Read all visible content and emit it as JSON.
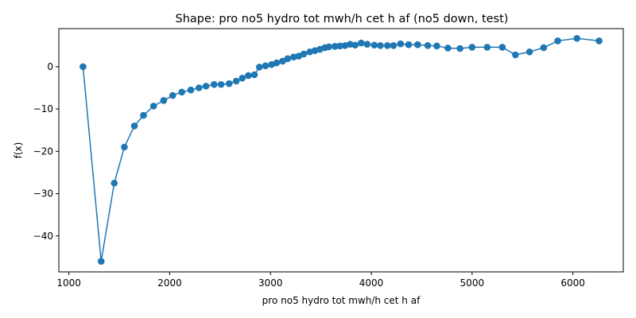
{
  "chart_data": {
    "type": "line",
    "title": "Shape: pro no5 hydro tot mwh/h cet h af (no5 down, test)",
    "xlabel": "pro no5 hydro tot mwh/h cet h af",
    "ylabel": "f(x)",
    "xlim": [
      900,
      6500
    ],
    "ylim": [
      -48.5,
      9
    ],
    "x_ticks": [
      1000,
      2000,
      3000,
      4000,
      5000,
      6000
    ],
    "x_tick_labels": [
      "1000",
      "2000",
      "3000",
      "4000",
      "5000",
      "6000"
    ],
    "y_ticks": [
      -40,
      -30,
      -20,
      -10,
      0
    ],
    "y_tick_labels": [
      "−40",
      "−30",
      "−20",
      "−10",
      "0"
    ],
    "grid": false,
    "series": [
      {
        "color": "#1f77b4",
        "marker": "circle",
        "x": [
          1140,
          1320,
          1450,
          1550,
          1650,
          1740,
          1840,
          1940,
          2030,
          2120,
          2210,
          2290,
          2360,
          2440,
          2510,
          2590,
          2660,
          2720,
          2780,
          2840,
          2890,
          2950,
          3010,
          3060,
          3120,
          3170,
          3230,
          3280,
          3330,
          3390,
          3440,
          3490,
          3540,
          3580,
          3640,
          3690,
          3740,
          3790,
          3840,
          3900,
          3960,
          4030,
          4090,
          4160,
          4220,
          4290,
          4370,
          4460,
          4560,
          4650,
          4760,
          4880,
          5000,
          5150,
          5300,
          5430,
          5570,
          5710,
          5850,
          6040,
          6260
        ],
        "y": [
          0,
          -46,
          -27.5,
          -19,
          -14,
          -11.5,
          -9.3,
          -8,
          -6.8,
          -6,
          -5.5,
          -5,
          -4.6,
          -4.2,
          -4.2,
          -4,
          -3.4,
          -2.7,
          -2.1,
          -1.9,
          -0.1,
          0.2,
          0.5,
          0.9,
          1.3,
          1.9,
          2.3,
          2.5,
          3,
          3.5,
          3.8,
          4.1,
          4.5,
          4.7,
          4.8,
          4.9,
          5,
          5.3,
          5.1,
          5.6,
          5.3,
          5.1,
          5,
          5,
          5,
          5.4,
          5.2,
          5.2,
          5,
          4.9,
          4.4,
          4.3,
          4.6,
          4.6,
          4.6,
          2.8,
          3.5,
          4.5,
          6.1,
          6.7,
          6.1
        ]
      }
    ]
  }
}
